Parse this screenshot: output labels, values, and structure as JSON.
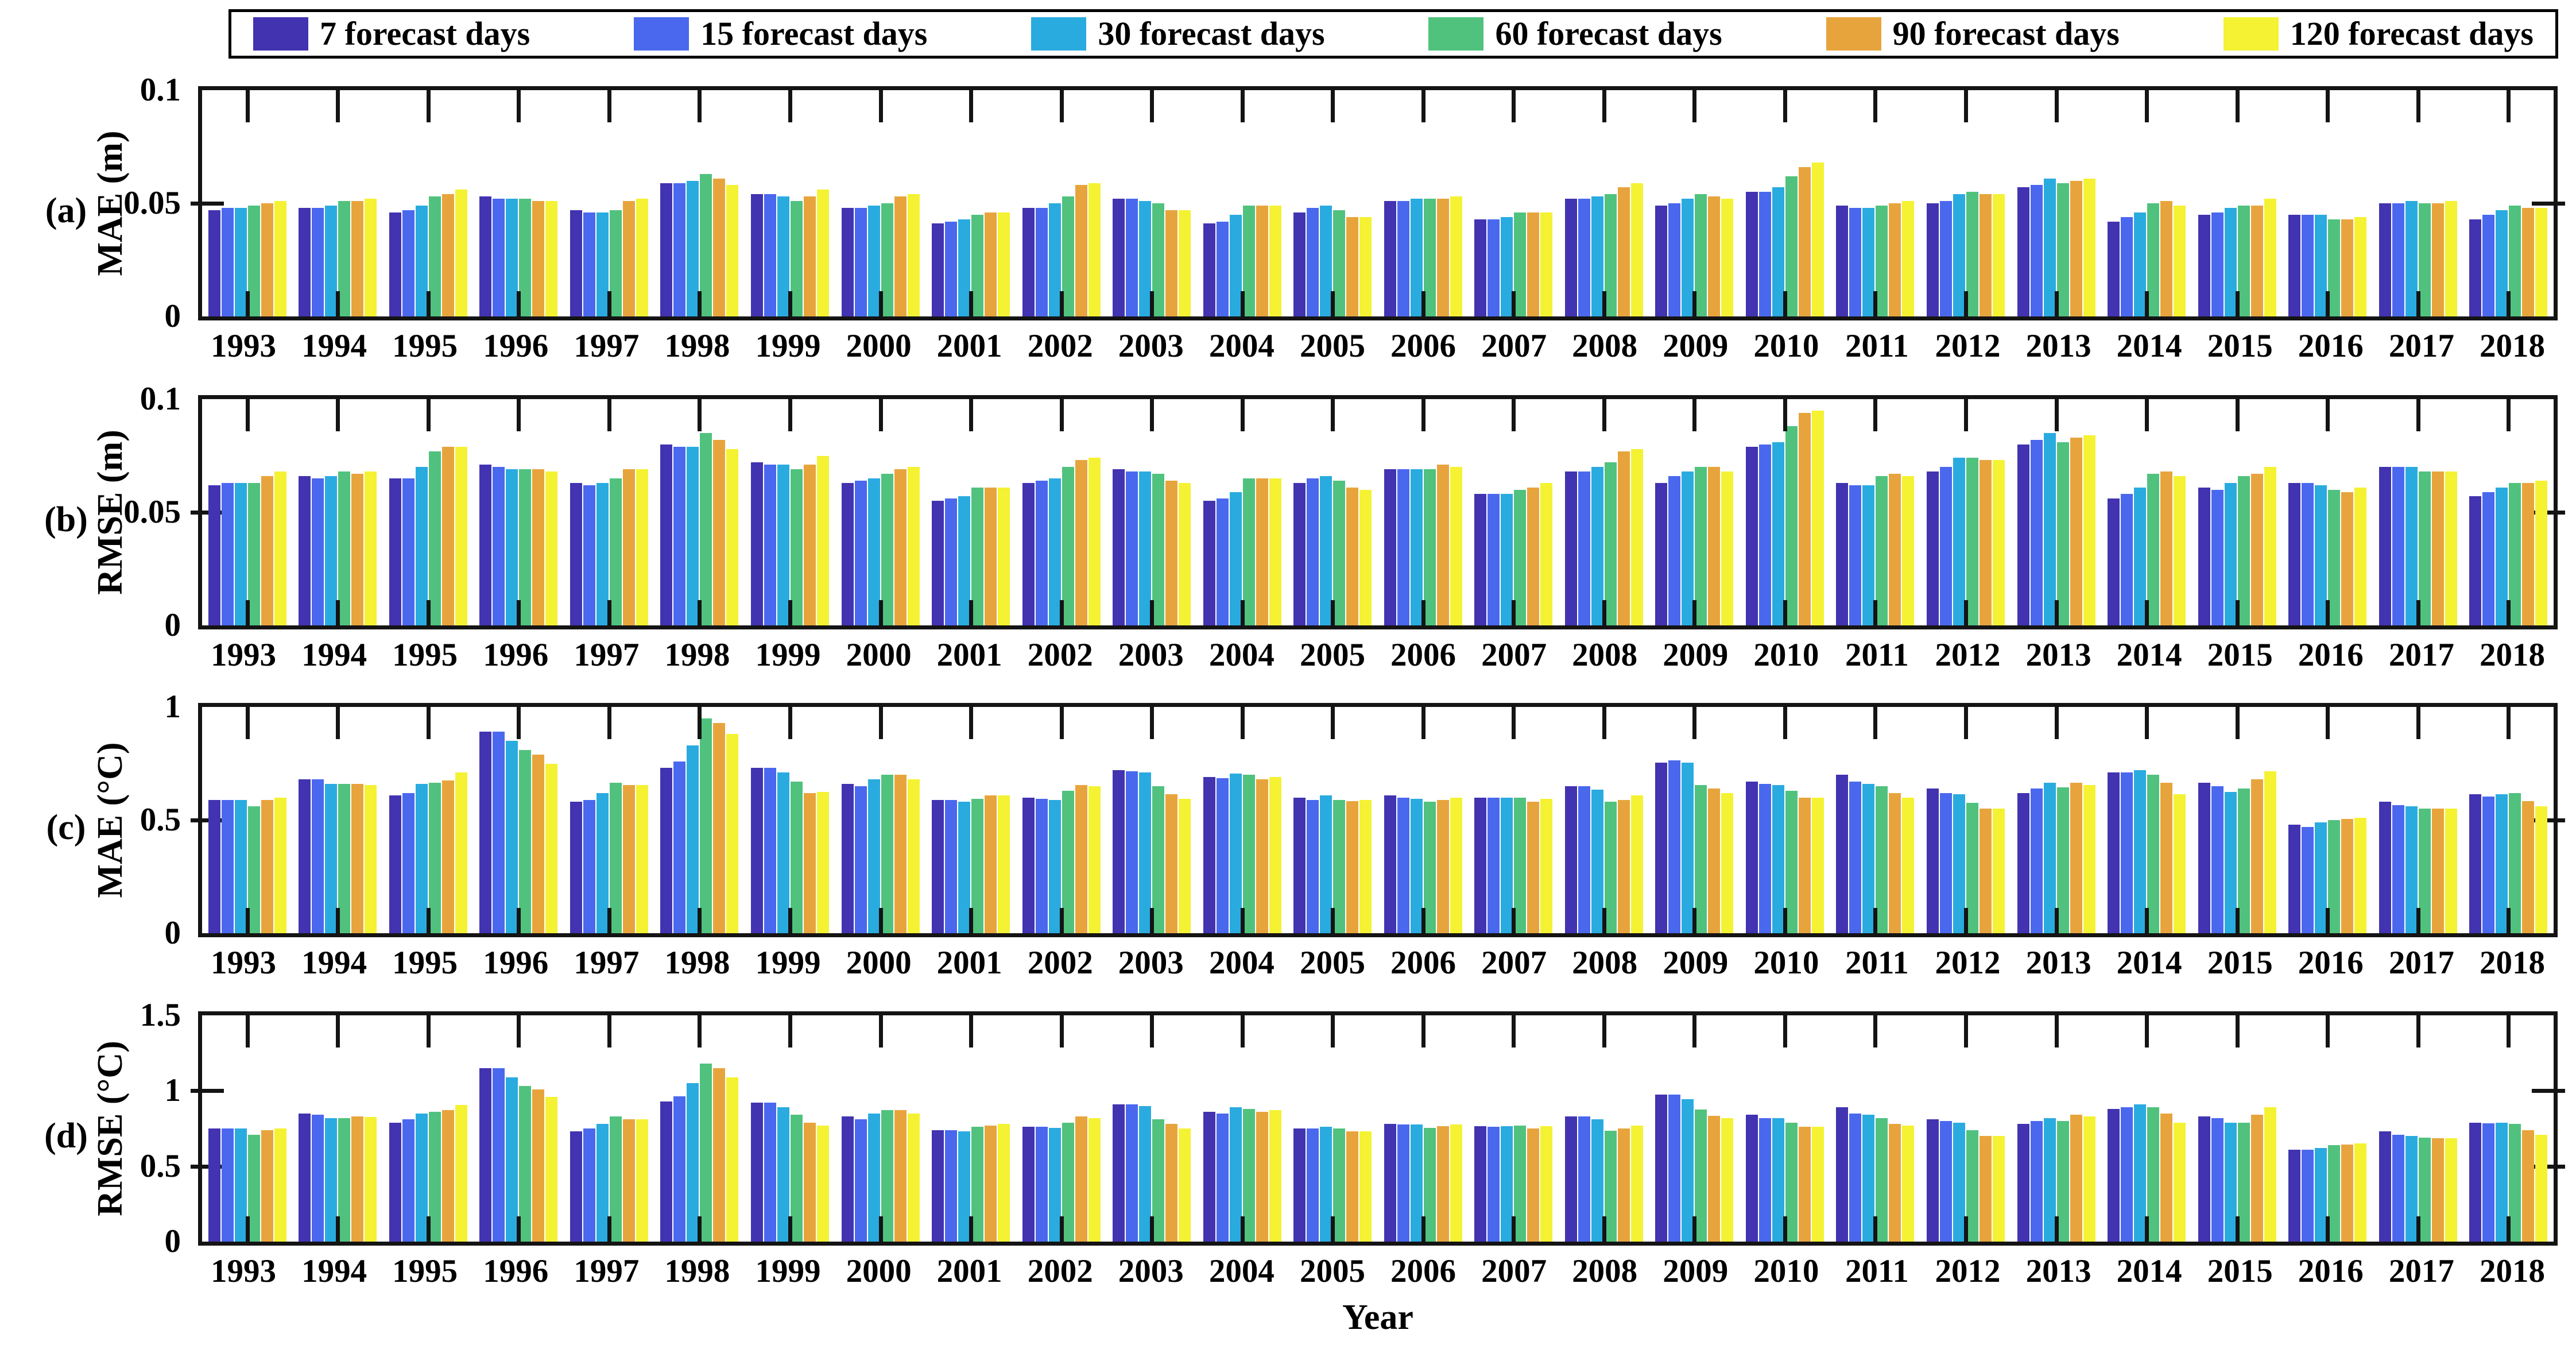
{
  "figure": {
    "xlabel": "Year",
    "background_color": "#ffffff",
    "axis_color": "#141414"
  },
  "legend": {
    "items": [
      {
        "label": "7 forecast days",
        "color": "#4233b0"
      },
      {
        "label": "15 forecast days",
        "color": "#4a68ee"
      },
      {
        "label": "30 forecast days",
        "color": "#2aabe0"
      },
      {
        "label": "60 forecast days",
        "color": "#50c27e"
      },
      {
        "label": "90 forecast days",
        "color": "#e8a43c"
      },
      {
        "label": "120 forecast days",
        "color": "#f4f233"
      }
    ]
  },
  "chart_data": {
    "type": "bar",
    "grid": false,
    "legend_position": "top",
    "categories": [
      "1993",
      "1994",
      "1995",
      "1996",
      "1997",
      "1998",
      "1999",
      "2000",
      "2001",
      "2002",
      "2003",
      "2004",
      "2005",
      "2006",
      "2007",
      "2008",
      "2009",
      "2010",
      "2011",
      "2012",
      "2013",
      "2014",
      "2015",
      "2016",
      "2017",
      "2018"
    ],
    "series_names": [
      "7 forecast days",
      "15 forecast days",
      "30 forecast days",
      "60 forecast days",
      "90 forecast days",
      "120 forecast days"
    ],
    "series_colors": [
      "#4233b0",
      "#4a68ee",
      "#2aabe0",
      "#50c27e",
      "#e8a43c",
      "#f4f233"
    ],
    "xlabel": "Year",
    "panels": [
      {
        "id": "a",
        "panel_label": "(a)",
        "ylabel": "MAE (m)",
        "ylim": [
          0,
          0.1
        ],
        "yticks": [
          {
            "v": 0,
            "t": "0"
          },
          {
            "v": 0.05,
            "t": "0.05"
          },
          {
            "v": 0.1,
            "t": "0.1"
          }
        ],
        "values_by_year": [
          [
            0.047,
            0.048,
            0.048,
            0.049,
            0.05,
            0.051
          ],
          [
            0.048,
            0.048,
            0.049,
            0.051,
            0.051,
            0.052
          ],
          [
            0.046,
            0.047,
            0.049,
            0.053,
            0.054,
            0.056
          ],
          [
            0.053,
            0.052,
            0.052,
            0.052,
            0.051,
            0.051
          ],
          [
            0.047,
            0.046,
            0.046,
            0.047,
            0.051,
            0.052
          ],
          [
            0.059,
            0.059,
            0.06,
            0.063,
            0.061,
            0.058
          ],
          [
            0.054,
            0.054,
            0.053,
            0.051,
            0.053,
            0.056
          ],
          [
            0.048,
            0.048,
            0.049,
            0.05,
            0.053,
            0.054
          ],
          [
            0.041,
            0.042,
            0.043,
            0.045,
            0.046,
            0.046
          ],
          [
            0.048,
            0.048,
            0.05,
            0.053,
            0.058,
            0.059
          ],
          [
            0.052,
            0.052,
            0.051,
            0.05,
            0.047,
            0.047
          ],
          [
            0.041,
            0.042,
            0.045,
            0.049,
            0.049,
            0.049
          ],
          [
            0.046,
            0.048,
            0.049,
            0.047,
            0.044,
            0.044
          ],
          [
            0.051,
            0.051,
            0.052,
            0.052,
            0.052,
            0.053
          ],
          [
            0.043,
            0.043,
            0.044,
            0.046,
            0.046,
            0.046
          ],
          [
            0.052,
            0.052,
            0.053,
            0.054,
            0.057,
            0.059
          ],
          [
            0.049,
            0.05,
            0.052,
            0.054,
            0.053,
            0.052
          ],
          [
            0.055,
            0.055,
            0.057,
            0.062,
            0.066,
            0.068
          ],
          [
            0.049,
            0.048,
            0.048,
            0.049,
            0.05,
            0.051
          ],
          [
            0.05,
            0.051,
            0.054,
            0.055,
            0.054,
            0.054
          ],
          [
            0.057,
            0.058,
            0.061,
            0.059,
            0.06,
            0.061
          ],
          [
            0.042,
            0.044,
            0.046,
            0.05,
            0.051,
            0.049
          ],
          [
            0.045,
            0.046,
            0.048,
            0.049,
            0.049,
            0.052
          ],
          [
            0.045,
            0.045,
            0.045,
            0.043,
            0.043,
            0.044
          ],
          [
            0.05,
            0.05,
            0.051,
            0.05,
            0.05,
            0.051
          ],
          [
            0.043,
            0.045,
            0.047,
            0.049,
            0.048,
            0.048
          ]
        ]
      },
      {
        "id": "b",
        "panel_label": "(b)",
        "ylabel": "RMSE (m)",
        "ylim": [
          0,
          0.1
        ],
        "yticks": [
          {
            "v": 0,
            "t": "0"
          },
          {
            "v": 0.05,
            "t": "0.05"
          },
          {
            "v": 0.1,
            "t": "0.1"
          }
        ],
        "values_by_year": [
          [
            0.062,
            0.063,
            0.063,
            0.063,
            0.066,
            0.068
          ],
          [
            0.066,
            0.065,
            0.066,
            0.068,
            0.067,
            0.068
          ],
          [
            0.065,
            0.065,
            0.07,
            0.077,
            0.079,
            0.079
          ],
          [
            0.071,
            0.07,
            0.069,
            0.069,
            0.069,
            0.068
          ],
          [
            0.063,
            0.062,
            0.063,
            0.065,
            0.069,
            0.069
          ],
          [
            0.08,
            0.079,
            0.079,
            0.085,
            0.082,
            0.078
          ],
          [
            0.072,
            0.071,
            0.071,
            0.069,
            0.071,
            0.075
          ],
          [
            0.063,
            0.064,
            0.065,
            0.067,
            0.069,
            0.07
          ],
          [
            0.055,
            0.056,
            0.057,
            0.061,
            0.061,
            0.061
          ],
          [
            0.063,
            0.064,
            0.065,
            0.07,
            0.073,
            0.074
          ],
          [
            0.069,
            0.068,
            0.068,
            0.067,
            0.064,
            0.063
          ],
          [
            0.055,
            0.056,
            0.059,
            0.065,
            0.065,
            0.065
          ],
          [
            0.063,
            0.065,
            0.066,
            0.064,
            0.061,
            0.06
          ],
          [
            0.069,
            0.069,
            0.069,
            0.069,
            0.071,
            0.07
          ],
          [
            0.058,
            0.058,
            0.058,
            0.06,
            0.061,
            0.063
          ],
          [
            0.068,
            0.068,
            0.07,
            0.072,
            0.077,
            0.078
          ],
          [
            0.063,
            0.066,
            0.068,
            0.07,
            0.07,
            0.068
          ],
          [
            0.079,
            0.08,
            0.081,
            0.088,
            0.094,
            0.095
          ],
          [
            0.063,
            0.062,
            0.062,
            0.066,
            0.067,
            0.066
          ],
          [
            0.068,
            0.07,
            0.074,
            0.074,
            0.073,
            0.073
          ],
          [
            0.08,
            0.082,
            0.085,
            0.081,
            0.083,
            0.084
          ],
          [
            0.056,
            0.058,
            0.061,
            0.067,
            0.068,
            0.066
          ],
          [
            0.061,
            0.06,
            0.063,
            0.066,
            0.067,
            0.07
          ],
          [
            0.063,
            0.063,
            0.062,
            0.06,
            0.059,
            0.061
          ],
          [
            0.07,
            0.07,
            0.07,
            0.068,
            0.068,
            0.068
          ],
          [
            0.057,
            0.059,
            0.061,
            0.063,
            0.063,
            0.064
          ]
        ]
      },
      {
        "id": "c",
        "panel_label": "(c)",
        "ylabel": "MAE (°C)",
        "ylim": [
          0,
          1
        ],
        "yticks": [
          {
            "v": 0,
            "t": "0"
          },
          {
            "v": 0.5,
            "t": "0.5"
          },
          {
            "v": 1,
            "t": "1"
          }
        ],
        "values_by_year": [
          [
            0.59,
            0.59,
            0.59,
            0.56,
            0.59,
            0.6
          ],
          [
            0.68,
            0.68,
            0.66,
            0.66,
            0.66,
            0.655
          ],
          [
            0.61,
            0.62,
            0.66,
            0.665,
            0.675,
            0.71
          ],
          [
            0.89,
            0.89,
            0.85,
            0.81,
            0.79,
            0.75
          ],
          [
            0.58,
            0.59,
            0.62,
            0.665,
            0.655,
            0.655
          ],
          [
            0.73,
            0.76,
            0.83,
            0.95,
            0.93,
            0.88
          ],
          [
            0.73,
            0.73,
            0.71,
            0.67,
            0.62,
            0.625
          ],
          [
            0.66,
            0.65,
            0.68,
            0.7,
            0.7,
            0.68
          ],
          [
            0.59,
            0.59,
            0.58,
            0.595,
            0.61,
            0.61
          ],
          [
            0.6,
            0.595,
            0.59,
            0.63,
            0.655,
            0.65
          ],
          [
            0.72,
            0.715,
            0.71,
            0.65,
            0.615,
            0.595
          ],
          [
            0.69,
            0.685,
            0.705,
            0.7,
            0.68,
            0.69
          ],
          [
            0.6,
            0.59,
            0.61,
            0.59,
            0.585,
            0.59
          ],
          [
            0.61,
            0.6,
            0.595,
            0.58,
            0.59,
            0.6
          ],
          [
            0.6,
            0.6,
            0.6,
            0.6,
            0.58,
            0.595
          ],
          [
            0.65,
            0.65,
            0.635,
            0.58,
            0.59,
            0.61
          ],
          [
            0.755,
            0.765,
            0.755,
            0.655,
            0.64,
            0.62
          ],
          [
            0.67,
            0.66,
            0.655,
            0.63,
            0.6,
            0.6
          ],
          [
            0.7,
            0.67,
            0.66,
            0.65,
            0.62,
            0.6
          ],
          [
            0.64,
            0.62,
            0.615,
            0.575,
            0.55,
            0.55
          ],
          [
            0.62,
            0.64,
            0.665,
            0.645,
            0.665,
            0.655
          ],
          [
            0.71,
            0.71,
            0.72,
            0.7,
            0.665,
            0.615
          ],
          [
            0.665,
            0.65,
            0.625,
            0.64,
            0.68,
            0.715
          ],
          [
            0.48,
            0.47,
            0.49,
            0.5,
            0.505,
            0.51
          ],
          [
            0.58,
            0.565,
            0.56,
            0.55,
            0.55,
            0.55
          ],
          [
            0.615,
            0.605,
            0.615,
            0.62,
            0.585,
            0.56
          ]
        ]
      },
      {
        "id": "d",
        "panel_label": "(d)",
        "ylabel": "RMSE (°C)",
        "ylim": [
          0,
          1.5
        ],
        "yticks": [
          {
            "v": 0,
            "t": "0"
          },
          {
            "v": 0.5,
            "t": "0.5"
          },
          {
            "v": 1,
            "t": "1"
          },
          {
            "v": 1.5,
            "t": "1.5"
          }
        ],
        "values_by_year": [
          [
            0.75,
            0.75,
            0.75,
            0.71,
            0.74,
            0.75
          ],
          [
            0.85,
            0.84,
            0.82,
            0.82,
            0.83,
            0.825
          ],
          [
            0.79,
            0.81,
            0.85,
            0.86,
            0.87,
            0.905
          ],
          [
            1.15,
            1.15,
            1.09,
            1.03,
            1.01,
            0.96
          ],
          [
            0.73,
            0.75,
            0.78,
            0.83,
            0.81,
            0.81
          ],
          [
            0.93,
            0.965,
            1.05,
            1.18,
            1.15,
            1.09
          ],
          [
            0.92,
            0.92,
            0.89,
            0.84,
            0.79,
            0.77
          ],
          [
            0.83,
            0.81,
            0.85,
            0.87,
            0.87,
            0.85
          ],
          [
            0.74,
            0.74,
            0.73,
            0.76,
            0.77,
            0.78
          ],
          [
            0.76,
            0.76,
            0.755,
            0.79,
            0.83,
            0.82
          ],
          [
            0.91,
            0.91,
            0.9,
            0.81,
            0.78,
            0.75
          ],
          [
            0.86,
            0.85,
            0.89,
            0.88,
            0.86,
            0.87
          ],
          [
            0.75,
            0.75,
            0.76,
            0.75,
            0.73,
            0.73
          ],
          [
            0.78,
            0.775,
            0.775,
            0.755,
            0.765,
            0.775
          ],
          [
            0.765,
            0.76,
            0.765,
            0.77,
            0.75,
            0.765
          ],
          [
            0.83,
            0.83,
            0.81,
            0.735,
            0.75,
            0.77
          ],
          [
            0.975,
            0.975,
            0.945,
            0.875,
            0.835,
            0.82
          ],
          [
            0.84,
            0.82,
            0.82,
            0.79,
            0.76,
            0.76
          ],
          [
            0.89,
            0.85,
            0.84,
            0.82,
            0.78,
            0.77
          ],
          [
            0.81,
            0.8,
            0.79,
            0.74,
            0.7,
            0.7
          ],
          [
            0.78,
            0.8,
            0.82,
            0.8,
            0.84,
            0.83
          ],
          [
            0.88,
            0.89,
            0.91,
            0.89,
            0.85,
            0.79
          ],
          [
            0.83,
            0.82,
            0.79,
            0.79,
            0.84,
            0.89
          ],
          [
            0.61,
            0.61,
            0.62,
            0.64,
            0.645,
            0.65
          ],
          [
            0.73,
            0.71,
            0.7,
            0.69,
            0.685,
            0.685
          ],
          [
            0.79,
            0.785,
            0.79,
            0.78,
            0.74,
            0.71
          ]
        ]
      }
    ]
  }
}
